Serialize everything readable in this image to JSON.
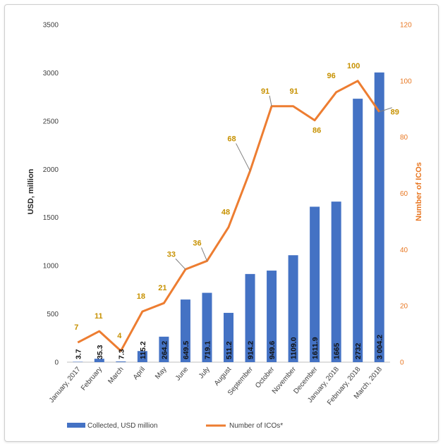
{
  "chart_data": {
    "type": "bar+line",
    "categories": [
      "January, 2017",
      "February",
      "March",
      "April",
      "May",
      "June",
      "July",
      "August",
      "September",
      "October",
      "November",
      "December",
      "January, 2018",
      "February, 2018",
      "March, 2018"
    ],
    "series": [
      {
        "name": "Collected, USD million",
        "type": "bar",
        "axis": "left",
        "color": "#4472c4",
        "values": [
          3.7,
          35.3,
          7.3,
          115.2,
          264.2,
          649.5,
          719.1,
          511.2,
          914.2,
          949.6,
          1109.0,
          1611.9,
          1665,
          2732,
          3004.2
        ],
        "labels": [
          "3.7",
          "35.3",
          "7.3",
          "115.2",
          "264.2",
          "649.5",
          "719.1",
          "511.2",
          "914.2",
          "949.6",
          "1109.0",
          "1611.9",
          "1665",
          "2732",
          "3 004.2"
        ]
      },
      {
        "name": "Number of ICOs*",
        "type": "line",
        "axis": "right",
        "color": "#ed7d31",
        "values": [
          7,
          11,
          4,
          18,
          21,
          33,
          36,
          48,
          68,
          91,
          91,
          86,
          96,
          100,
          89
        ],
        "labels": [
          "7",
          "11",
          "4",
          "18",
          "21",
          "33",
          "36",
          "48",
          "68",
          "91",
          "91",
          "86",
          "96",
          "100",
          "89"
        ]
      }
    ],
    "ylabel": "USD, million",
    "ylabel_right": "Number of ICOs",
    "ylim": [
      0,
      3500
    ],
    "yticks": [
      0,
      500,
      1000,
      1500,
      2000,
      2500,
      3000,
      3500
    ],
    "ylim_right": [
      0,
      120
    ],
    "yticks_right": [
      0,
      20,
      40,
      60,
      80,
      100,
      120
    ],
    "grid": false,
    "legend_position": "bottom"
  }
}
